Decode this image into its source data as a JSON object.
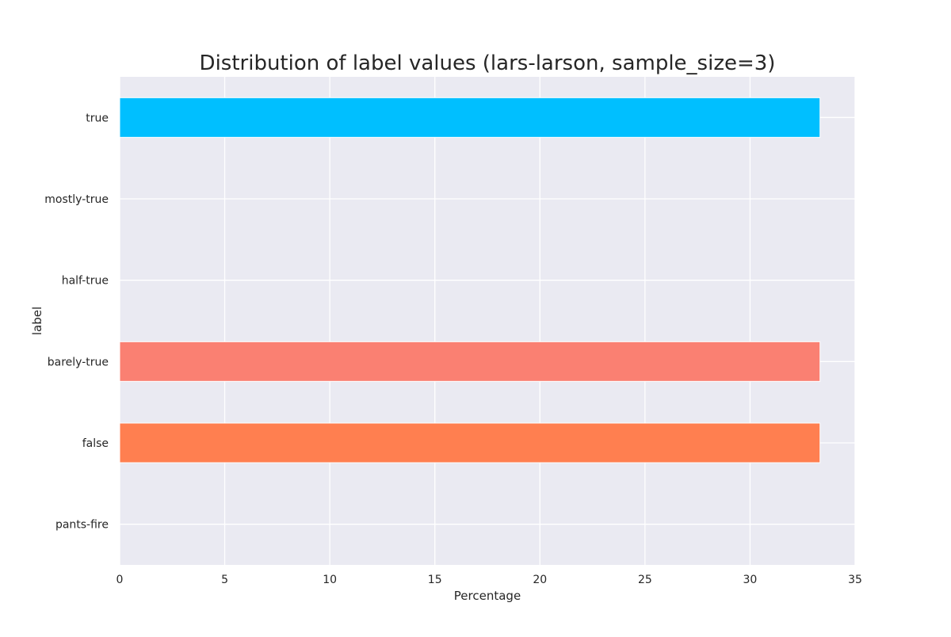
{
  "chart_data": {
    "type": "bar",
    "orientation": "horizontal",
    "title": "Distribution of label values (lars-larson, sample_size=3)",
    "xlabel": "Percentage",
    "ylabel": "label",
    "xlim": [
      0,
      35
    ],
    "x_ticks": [
      "0",
      "5",
      "10",
      "15",
      "20",
      "25",
      "30",
      "35"
    ],
    "categories": [
      "true",
      "mostly-true",
      "half-true",
      "barely-true",
      "false",
      "pants-fire"
    ],
    "values": [
      33.33,
      0,
      0,
      33.33,
      33.33,
      0
    ],
    "colors": [
      "#00BFFF",
      "#87CEFA",
      "#F4A460",
      "#FA8072",
      "#FF7F50",
      "#FF4500"
    ],
    "grid": true,
    "background": "#EAEAF2",
    "grid_color": "#FFFFFF"
  }
}
